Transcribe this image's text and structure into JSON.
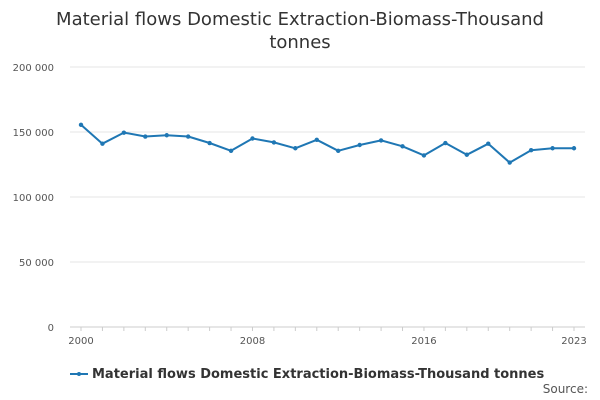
{
  "chart_data": {
    "type": "line",
    "title": "Material flows Domestic Extraction-Biomass-Thousand tonnes",
    "xlabel": "",
    "ylabel": "",
    "x": [
      2000,
      2001,
      2002,
      2003,
      2004,
      2005,
      2006,
      2007,
      2008,
      2009,
      2010,
      2011,
      2012,
      2013,
      2014,
      2015,
      2016,
      2017,
      2018,
      2019,
      2020,
      2021,
      2022,
      2023
    ],
    "series": [
      {
        "name": "Material flows Domestic Extraction-Biomass-Thousand tonnes",
        "color": "#1f77b4",
        "values": [
          155500,
          141000,
          149500,
          146500,
          147500,
          146500,
          141500,
          135500,
          145000,
          142000,
          137500,
          144000,
          135500,
          140000,
          143500,
          139000,
          132000,
          141500,
          132500,
          141000,
          126500,
          136000,
          137500,
          137500
        ]
      }
    ],
    "ylim": [
      0,
      200000
    ],
    "yticks": [
      0,
      50000,
      100000,
      150000,
      200000
    ],
    "ytick_labels": [
      "0",
      "50 000",
      "100 000",
      "150 000",
      "200 000"
    ],
    "xticks": [
      2000,
      2008,
      2016,
      2023
    ],
    "xtick_labels": [
      "2000",
      "2008",
      "2016",
      "2023"
    ],
    "grid": true,
    "legend_position": "bottom-left"
  },
  "source_label": "Source:"
}
